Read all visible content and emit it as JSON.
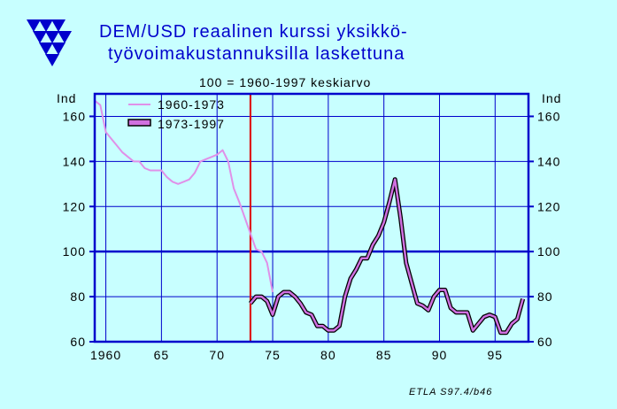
{
  "title_line1": "DEM/USD reaalinen kurssi yksikkö-",
  "title_line2": "työvoimakustannuksilla laskettuna",
  "subtitle": "100 = 1960-1997 keskiarvo",
  "source": "ETLA S97.4/b46",
  "colors": {
    "background": "#c8ffff",
    "axis": "#0000cc",
    "series_early": "#e090e8",
    "series_late_fill": "#d070e0",
    "series_late_edge": "#000000",
    "marker_line": "#dd0000",
    "reference_line": "#0000cc",
    "logo": "#0000cc"
  },
  "logo": {
    "icon": "etla-triangles-logo"
  },
  "chart_data": {
    "type": "line",
    "title": "DEM/USD reaalinen kurssi yksikkö- työvoimakustannuksilla laskettuna",
    "subtitle": "100 = 1960-1997 keskiarvo",
    "ylabel_left": "Ind",
    "ylabel_right": "Ind",
    "xlim": [
      1959,
      1998
    ],
    "ylim": [
      60,
      170
    ],
    "x_ticks": [
      1960,
      1965,
      1970,
      1975,
      1980,
      1985,
      1990,
      1995
    ],
    "x_tick_labels": [
      "1960",
      "65",
      "70",
      "75",
      "80",
      "85",
      "90",
      "95"
    ],
    "y_ticks": [
      60,
      80,
      100,
      120,
      140,
      160
    ],
    "y_tick_labels": [
      "60",
      "80",
      "100",
      "120",
      "140",
      "160"
    ],
    "grid": true,
    "legend_position": "top-left",
    "reference_line_y": 100,
    "vertical_marker_x": 1973,
    "series": [
      {
        "name": "1960-1973",
        "style": "thin",
        "points": [
          [
            1959.0,
            167
          ],
          [
            1959.5,
            165
          ],
          [
            1960.0,
            153
          ],
          [
            1960.5,
            150
          ],
          [
            1961.0,
            147
          ],
          [
            1961.5,
            144
          ],
          [
            1962.0,
            142
          ],
          [
            1962.5,
            140
          ],
          [
            1963.0,
            140
          ],
          [
            1963.5,
            137
          ],
          [
            1964.0,
            136
          ],
          [
            1964.5,
            136
          ],
          [
            1965.0,
            136
          ],
          [
            1965.5,
            133
          ],
          [
            1966.0,
            131
          ],
          [
            1966.5,
            130
          ],
          [
            1967.0,
            131
          ],
          [
            1967.5,
            132
          ],
          [
            1968.0,
            135
          ],
          [
            1968.5,
            140
          ],
          [
            1969.0,
            141
          ],
          [
            1969.5,
            142
          ],
          [
            1970.0,
            143
          ],
          [
            1970.5,
            145
          ],
          [
            1971.0,
            140
          ],
          [
            1971.5,
            128
          ],
          [
            1972.0,
            122
          ],
          [
            1972.5,
            115
          ],
          [
            1973.0,
            108
          ],
          [
            1973.5,
            101
          ],
          [
            1974.0,
            100
          ],
          [
            1974.5,
            95
          ],
          [
            1975.0,
            82
          ]
        ]
      },
      {
        "name": "1973-1997",
        "style": "thick",
        "points": [
          [
            1973.0,
            77
          ],
          [
            1973.5,
            80
          ],
          [
            1974.0,
            80
          ],
          [
            1974.5,
            78
          ],
          [
            1975.0,
            72
          ],
          [
            1975.5,
            80
          ],
          [
            1976.0,
            82
          ],
          [
            1976.5,
            82
          ],
          [
            1977.0,
            80
          ],
          [
            1977.5,
            77
          ],
          [
            1978.0,
            73
          ],
          [
            1978.5,
            72
          ],
          [
            1979.0,
            67
          ],
          [
            1979.5,
            67
          ],
          [
            1980.0,
            65
          ],
          [
            1980.5,
            65
          ],
          [
            1981.0,
            67
          ],
          [
            1981.5,
            80
          ],
          [
            1982.0,
            88
          ],
          [
            1982.5,
            92
          ],
          [
            1983.0,
            97
          ],
          [
            1983.5,
            97
          ],
          [
            1984.0,
            103
          ],
          [
            1984.5,
            107
          ],
          [
            1985.0,
            113
          ],
          [
            1985.5,
            122
          ],
          [
            1986.0,
            132
          ],
          [
            1986.5,
            115
          ],
          [
            1987.0,
            95
          ],
          [
            1987.5,
            86
          ],
          [
            1988.0,
            77
          ],
          [
            1988.5,
            76
          ],
          [
            1989.0,
            74
          ],
          [
            1989.5,
            80
          ],
          [
            1990.0,
            83
          ],
          [
            1990.5,
            83
          ],
          [
            1991.0,
            75
          ],
          [
            1991.5,
            73
          ],
          [
            1992.0,
            73
          ],
          [
            1992.5,
            73
          ],
          [
            1993.0,
            65
          ],
          [
            1993.5,
            68
          ],
          [
            1994.0,
            71
          ],
          [
            1994.5,
            72
          ],
          [
            1995.0,
            71
          ],
          [
            1995.5,
            64
          ],
          [
            1996.0,
            64
          ],
          [
            1996.5,
            68
          ],
          [
            1997.0,
            70
          ],
          [
            1997.5,
            79
          ]
        ]
      }
    ]
  }
}
